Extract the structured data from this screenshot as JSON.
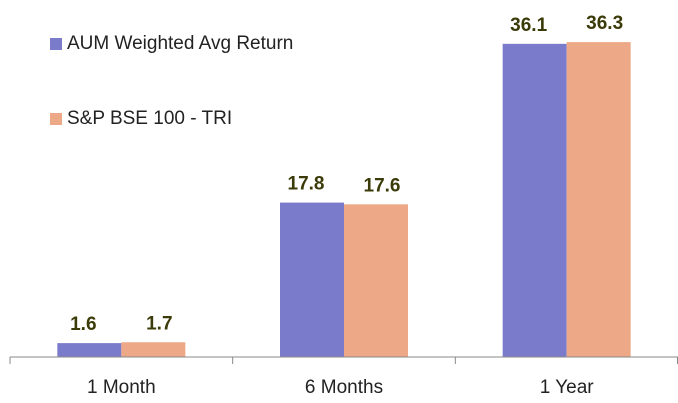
{
  "chart_data": {
    "type": "bar",
    "categories": [
      "1 Month",
      "6 Months",
      "1 Year"
    ],
    "series": [
      {
        "name": "AUM Weighted Avg Return",
        "color": "#7b7bcc",
        "values": [
          1.6,
          17.8,
          36.1
        ]
      },
      {
        "name": "S&P BSE 100 - TRI",
        "color": "#eda987",
        "values": [
          1.7,
          17.6,
          36.3
        ]
      }
    ],
    "ylim": [
      0,
      40
    ],
    "grid": false
  }
}
